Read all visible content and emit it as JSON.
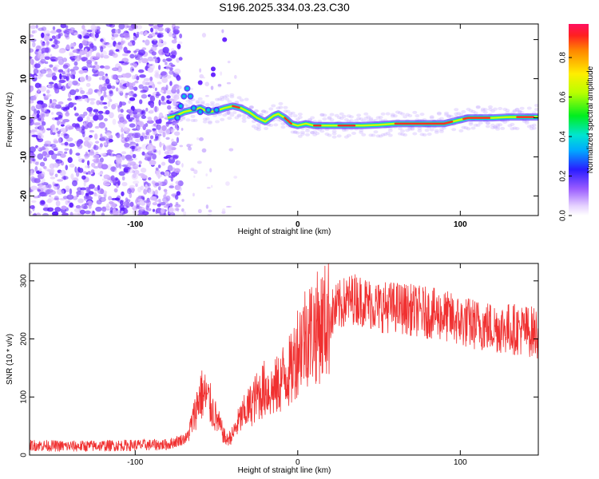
{
  "figure_title": "S196.2025.334.03.23.C30",
  "chart_data": [
    {
      "type": "heatmap",
      "title": "S196.2025.334.03.23.C30",
      "xlabel": "Height of straight line (km)",
      "ylabel": "Frequency (Hz)",
      "xlim": [
        -165,
        148
      ],
      "ylim": [
        -25,
        24
      ],
      "x_ticks": [
        -100,
        0,
        100
      ],
      "y_ticks": [
        -20,
        -10,
        0,
        10,
        20
      ],
      "colorbar": {
        "label": "Normalized spectral amplitude",
        "range": [
          0.0,
          0.97
        ],
        "ticks": [
          0.0,
          0.2,
          0.4,
          0.6,
          0.8
        ]
      },
      "trace": {
        "x": [
          -80,
          -75,
          -70,
          -65,
          -60,
          -55,
          -50,
          -45,
          -40,
          -35,
          -30,
          -25,
          -20,
          -15,
          -12,
          -8,
          -4,
          0,
          5,
          10,
          20,
          30,
          40,
          50,
          60,
          70,
          80,
          90,
          95,
          100,
          105,
          110,
          120,
          130,
          140,
          148
        ],
        "y": [
          0.0,
          0.5,
          1.5,
          2.0,
          2.5,
          1.5,
          1.8,
          2.5,
          3.0,
          2.5,
          1.5,
          0.0,
          -1.0,
          0.5,
          1.0,
          0.0,
          -1.5,
          -2.0,
          -1.5,
          -2.0,
          -2.0,
          -2.0,
          -2.0,
          -1.8,
          -1.5,
          -1.5,
          -1.5,
          -1.5,
          -1.0,
          -0.5,
          0.0,
          0.0,
          0.0,
          0.2,
          0.2,
          0.2
        ]
      },
      "noise_region_x": [
        -165,
        -78
      ]
    },
    {
      "type": "line",
      "xlabel": "Height of straight line (km)",
      "ylabel": "SNR (10 * v/v)",
      "xlim": [
        -165,
        148
      ],
      "ylim": [
        0,
        330
      ],
      "x_ticks": [
        -100,
        0,
        100
      ],
      "y_ticks": [
        0,
        100,
        200,
        300
      ],
      "series": [
        {
          "name": "SNR",
          "color": "#f03030",
          "envelope": {
            "x": [
              -165,
              -140,
              -120,
              -100,
              -80,
              -68,
              -64,
              -60,
              -56,
              -52,
              -48,
              -44,
              -40,
              -36,
              -32,
              -28,
              -24,
              -20,
              -16,
              -12,
              -8,
              -4,
              0,
              5,
              10,
              15,
              20,
              25,
              30,
              35,
              40,
              50,
              60,
              70,
              80,
              90,
              100,
              110,
              120,
              130,
              140,
              148
            ],
            "y": [
              17,
              15,
              16,
              17,
              18,
              30,
              65,
              105,
              100,
              75,
              50,
              25,
              35,
              60,
              75,
              90,
              105,
              115,
              110,
              120,
              140,
              145,
              185,
              210,
              215,
              225,
              240,
              255,
              265,
              270,
              265,
              255,
              255,
              250,
              245,
              240,
              230,
              225,
              220,
              218,
              215,
              210
            ]
          }
        }
      ]
    }
  ]
}
